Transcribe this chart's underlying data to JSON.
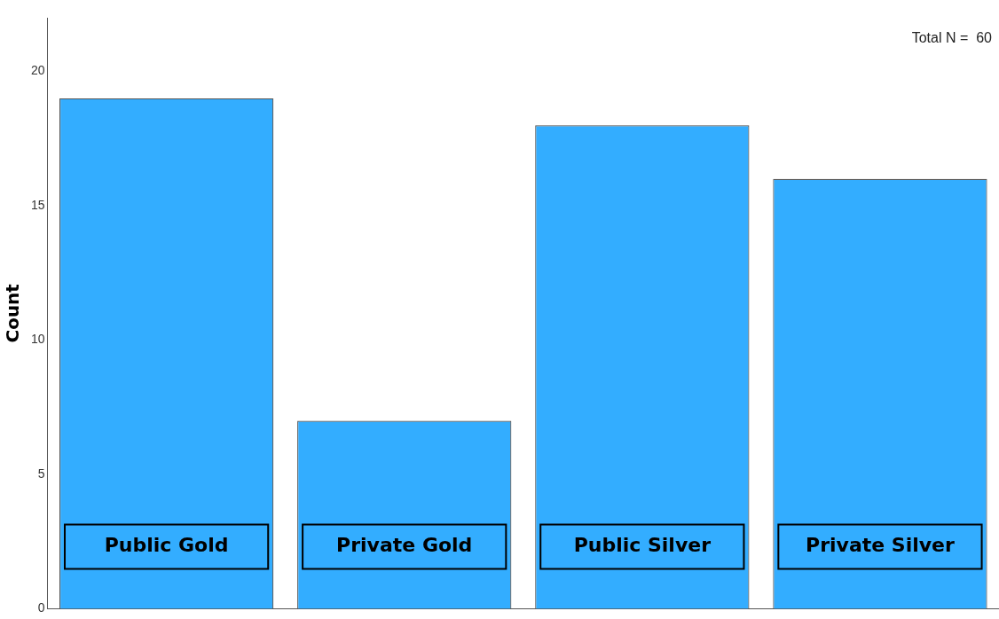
{
  "chart_data": {
    "type": "bar",
    "ylabel": "Count",
    "categories": [
      "Public Gold",
      "Private Gold",
      "Public Silver",
      "Private Silver"
    ],
    "values": [
      19,
      7,
      18,
      16
    ],
    "color": "#33adff",
    "ylim": [
      0,
      22
    ],
    "yticks": [
      0,
      5,
      10,
      15,
      20
    ],
    "grid": false,
    "legend": false,
    "annotations": [
      "Total N =  60"
    ]
  }
}
